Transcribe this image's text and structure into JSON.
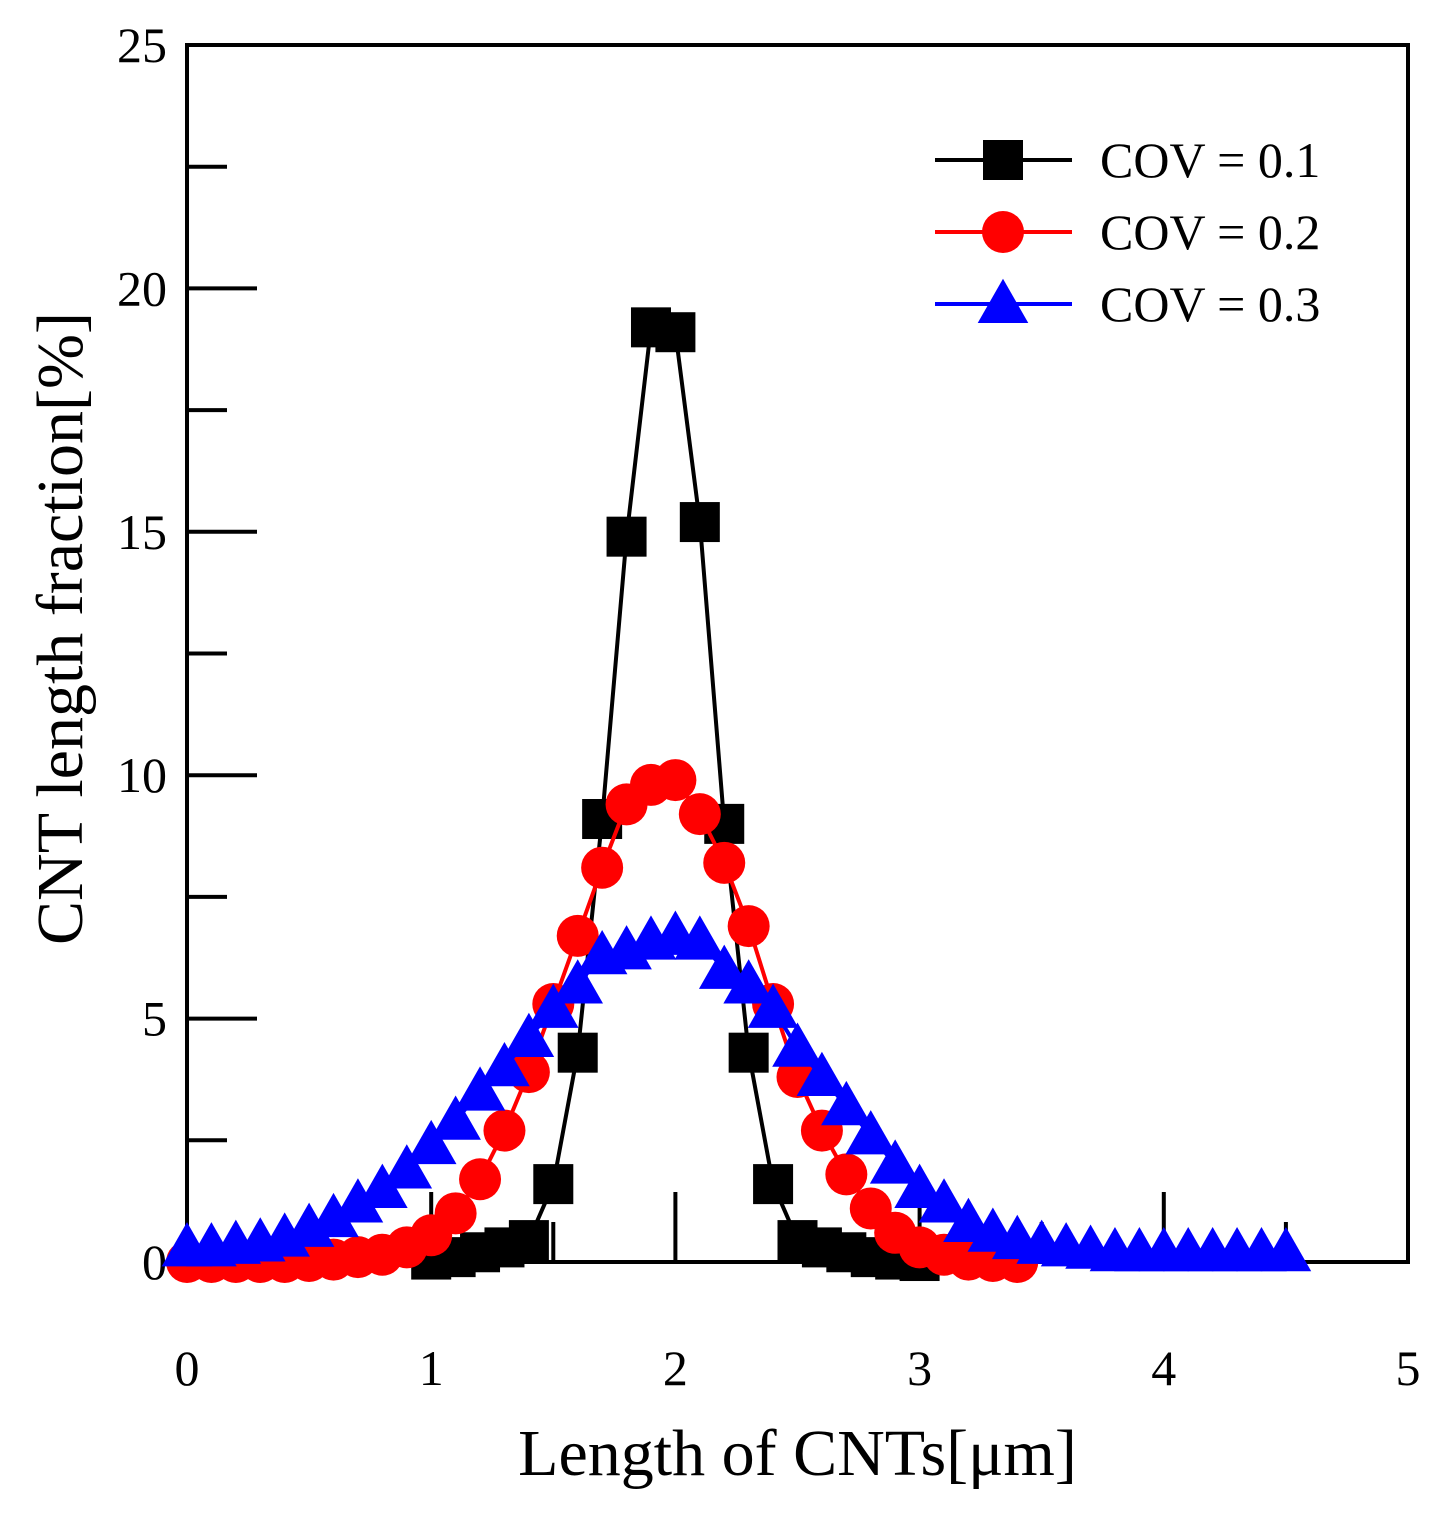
{
  "chart_data": {
    "type": "line",
    "title": "",
    "xlabel": "Length of  CNTs[μm]",
    "ylabel": "CNT length fraction[%]",
    "xlim": [
      0,
      5
    ],
    "ylim": [
      0,
      25
    ],
    "xticks": [
      0,
      1,
      2,
      3,
      4,
      5
    ],
    "yticks": [
      0,
      5,
      10,
      15,
      20,
      25
    ],
    "xtick_labels": [
      "0",
      "1",
      "2",
      "3",
      "4",
      "5"
    ],
    "ytick_labels": [
      "0",
      "5",
      "10",
      "15",
      "20",
      "25"
    ],
    "grid": false,
    "legend_position": "top-right",
    "series": [
      {
        "name": "COV = 0.1",
        "color": "#000000",
        "marker": "square",
        "x": [
          1.0,
          1.1,
          1.2,
          1.3,
          1.4,
          1.5,
          1.6,
          1.7,
          1.8,
          1.9,
          2.0,
          2.1,
          2.2,
          2.3,
          2.4,
          2.5,
          2.6,
          2.7,
          2.8,
          2.9,
          3.0
        ],
        "y": [
          0.05,
          0.1,
          0.2,
          0.3,
          0.45,
          1.6,
          4.3,
          9.1,
          14.9,
          19.2,
          19.1,
          15.2,
          9.0,
          4.3,
          1.6,
          0.45,
          0.3,
          0.2,
          0.1,
          0.05,
          0.02
        ]
      },
      {
        "name": "COV = 0.2",
        "color": "#ff0000",
        "marker": "circle",
        "x": [
          0.0,
          0.1,
          0.2,
          0.3,
          0.4,
          0.5,
          0.6,
          0.7,
          0.8,
          0.9,
          1.0,
          1.1,
          1.2,
          1.3,
          1.4,
          1.5,
          1.6,
          1.7,
          1.8,
          1.9,
          2.0,
          2.1,
          2.2,
          2.3,
          2.4,
          2.5,
          2.6,
          2.7,
          2.8,
          2.9,
          3.0,
          3.1,
          3.2,
          3.3,
          3.4
        ],
        "y": [
          0.0,
          0.0,
          0.0,
          0.0,
          0.0,
          0.02,
          0.05,
          0.1,
          0.15,
          0.3,
          0.55,
          1.0,
          1.7,
          2.7,
          3.9,
          5.3,
          6.7,
          8.1,
          9.4,
          9.8,
          9.9,
          9.2,
          8.2,
          6.9,
          5.3,
          3.8,
          2.7,
          1.8,
          1.1,
          0.6,
          0.3,
          0.15,
          0.05,
          0.02,
          0.0
        ]
      },
      {
        "name": "COV = 0.3",
        "color": "#0000ff",
        "marker": "triangle",
        "x": [
          0.0,
          0.1,
          0.2,
          0.3,
          0.4,
          0.5,
          0.6,
          0.7,
          0.8,
          0.9,
          1.0,
          1.1,
          1.2,
          1.3,
          1.4,
          1.5,
          1.6,
          1.7,
          1.8,
          1.9,
          2.0,
          2.1,
          2.2,
          2.3,
          2.4,
          2.5,
          2.6,
          2.7,
          2.8,
          2.9,
          3.0,
          3.1,
          3.2,
          3.3,
          3.4,
          3.5,
          3.6,
          3.7,
          3.8,
          3.9,
          4.0,
          4.1,
          4.2,
          4.3,
          4.4,
          4.5
        ],
        "y": [
          0.3,
          0.3,
          0.35,
          0.4,
          0.5,
          0.7,
          0.9,
          1.2,
          1.5,
          1.9,
          2.4,
          2.9,
          3.5,
          4.0,
          4.6,
          5.2,
          5.7,
          6.3,
          6.4,
          6.6,
          6.7,
          6.6,
          6.0,
          5.7,
          5.2,
          4.4,
          3.8,
          3.2,
          2.6,
          2.0,
          1.5,
          1.2,
          0.8,
          0.6,
          0.45,
          0.35,
          0.3,
          0.25,
          0.2,
          0.2,
          0.2,
          0.2,
          0.2,
          0.2,
          0.2,
          0.2
        ]
      }
    ]
  }
}
